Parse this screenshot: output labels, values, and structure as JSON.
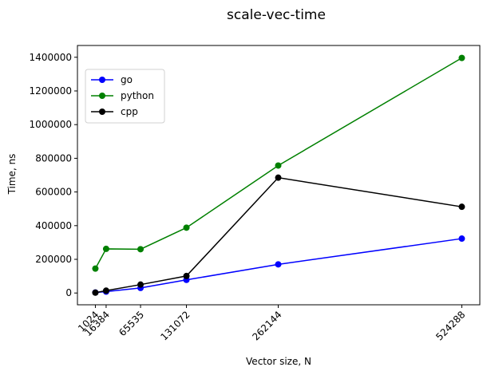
{
  "chart_data": {
    "type": "line",
    "title": "scale-vec-time",
    "xlabel": "Vector size, N",
    "ylabel": "Time, ns",
    "x": [
      1024,
      16384,
      65535,
      131072,
      262144,
      524288
    ],
    "x_tick_labels": [
      "1024",
      "16384",
      "65535",
      "131072",
      "262144",
      "524288"
    ],
    "y_ticks": [
      0,
      200000,
      400000,
      600000,
      800000,
      1000000,
      1200000,
      1400000
    ],
    "y_tick_labels": [
      "0",
      "200000",
      "400000",
      "600000",
      "800000",
      "1000000",
      "1200000",
      "1400000"
    ],
    "xlim": [
      -24576,
      550000
    ],
    "ylim": [
      -70000,
      1470000
    ],
    "legend_location": "upper-left",
    "grid": false,
    "series": [
      {
        "name": "go",
        "color": "#0000ff",
        "values": [
          3000,
          8000,
          30000,
          78000,
          170000,
          323000
        ]
      },
      {
        "name": "python",
        "color": "#008000",
        "values": [
          145000,
          262000,
          260000,
          388000,
          757000,
          1396000
        ]
      },
      {
        "name": "cpp",
        "color": "#000000",
        "values": [
          2000,
          14000,
          50000,
          101000,
          685000,
          512000
        ]
      }
    ]
  }
}
